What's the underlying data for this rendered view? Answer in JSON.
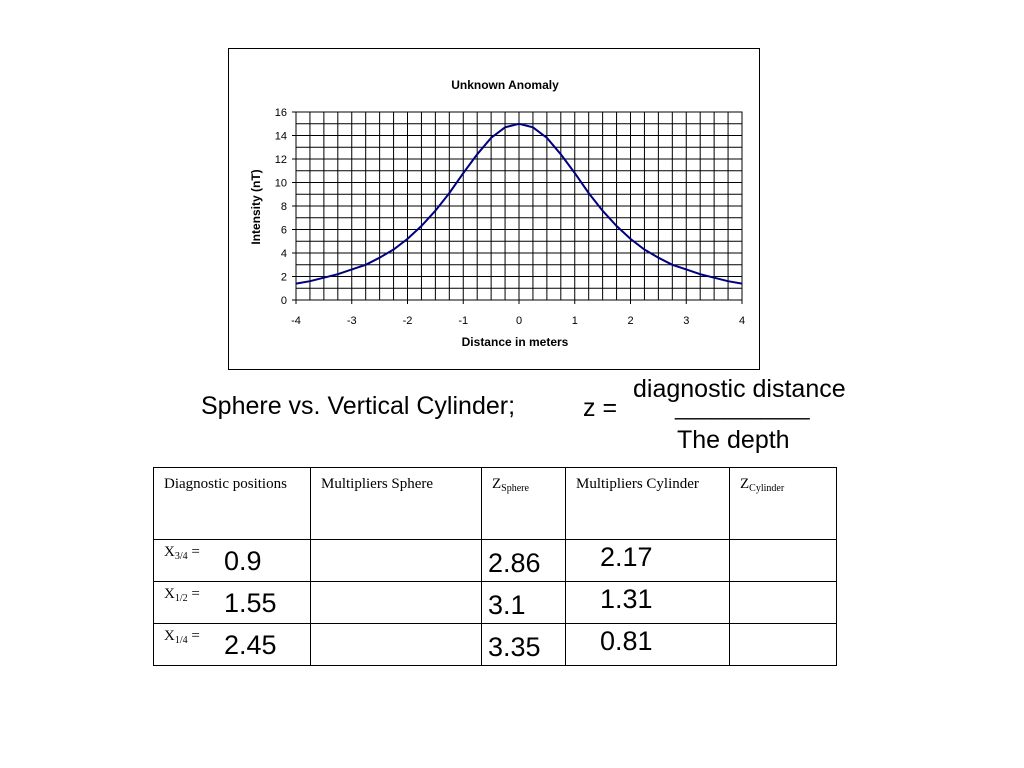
{
  "chart_data": {
    "type": "line",
    "title": "Unknown Anomaly",
    "xlabel": "Distance in meters",
    "ylabel": "Intensity (nT)",
    "xlim": [
      -4,
      4
    ],
    "ylim": [
      0,
      16
    ],
    "x_ticks": [
      "-4",
      "-3",
      "-2",
      "-1",
      "0",
      "1",
      "2",
      "3",
      "4"
    ],
    "y_ticks": [
      "0",
      "2",
      "4",
      "6",
      "8",
      "10",
      "12",
      "14",
      "16"
    ],
    "grid": true,
    "legend": "none",
    "line_color": "#000080",
    "series": [
      {
        "x": [
          -4,
          -3.75,
          -3.5,
          -3.25,
          -3,
          -2.75,
          -2.5,
          -2.25,
          -2,
          -1.75,
          -1.5,
          -1.25,
          -1,
          -0.75,
          -0.5,
          -0.25,
          0,
          0.25,
          0.5,
          0.75,
          1,
          1.25,
          1.5,
          1.75,
          2,
          2.25,
          2.5,
          2.75,
          3,
          3.25,
          3.5,
          3.75,
          4
        ],
        "y": [
          1.4,
          1.6,
          1.9,
          2.2,
          2.6,
          3.0,
          3.6,
          4.3,
          5.2,
          6.3,
          7.6,
          9.1,
          10.8,
          12.4,
          13.8,
          14.7,
          15.0,
          14.7,
          13.8,
          12.4,
          10.8,
          9.1,
          7.6,
          6.3,
          5.2,
          4.3,
          3.6,
          3.0,
          2.6,
          2.2,
          1.9,
          1.6,
          1.4
        ]
      }
    ]
  },
  "equation": {
    "left": "Sphere vs. Vertical Cylinder;",
    "z": "z =",
    "numerator": "diagnostic distance",
    "fraction_line": "___________",
    "denominator": "The depth"
  },
  "table": {
    "headers": {
      "diagnostic": "Diagnostic positions",
      "mult_sphere": "Multipliers Sphere",
      "z_sphere_main": "Z",
      "z_sphere_sub": "Sphere",
      "mult_cylinder": "Multipliers Cylinder",
      "z_cyl_main": "Z",
      "z_cyl_sub": "Cylinder"
    },
    "rows": [
      {
        "x_main": "X",
        "x_sub": "3/4",
        "x_eq": " =",
        "value": "0.9",
        "z_sphere": "2.86",
        "mult_cylinder": "2.17"
      },
      {
        "x_main": "X",
        "x_sub": "1/2",
        "x_eq": " =",
        "value": "1.55",
        "z_sphere": "3.1",
        "mult_cylinder": "1.31"
      },
      {
        "x_main": "X",
        "x_sub": "1/4",
        "x_eq": " =",
        "value": "2.45",
        "z_sphere": "3.35",
        "mult_cylinder": "0.81"
      }
    ]
  }
}
